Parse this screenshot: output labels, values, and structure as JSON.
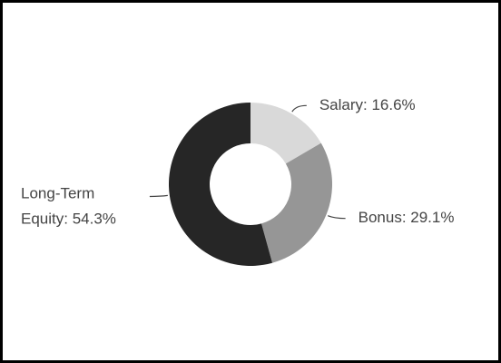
{
  "chart_data": {
    "type": "donut",
    "values": [
      16.6,
      29.1,
      54.3
    ],
    "value_labels": [
      "Salary: 16.6%",
      "Bonus: 29.1%",
      "Long-Term Equity: 54.3%"
    ],
    "colors": [
      "#d9d9d9",
      "#969696",
      "#262626"
    ]
  }
}
